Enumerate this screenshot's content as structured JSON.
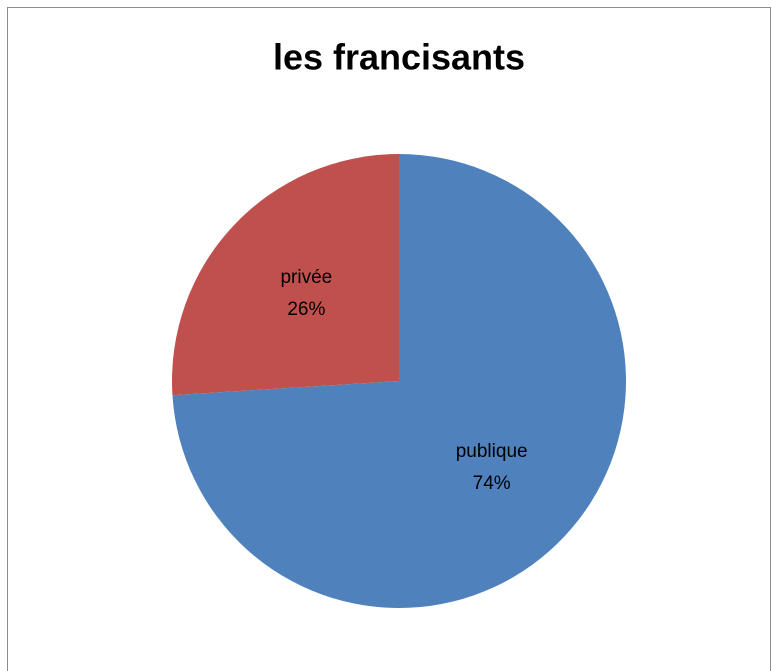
{
  "chart_data": {
    "type": "pie",
    "title": "les francisants",
    "categories": [
      "publique",
      "privée"
    ],
    "values": [
      74,
      26
    ],
    "value_labels": [
      "74%",
      "26%"
    ],
    "colors": [
      "#4f81bd",
      "#c0504d"
    ]
  }
}
